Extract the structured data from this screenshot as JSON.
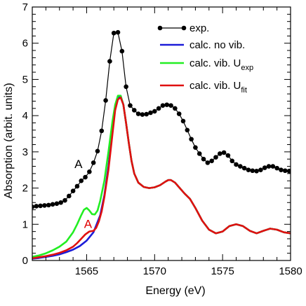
{
  "chart_data": {
    "type": "line",
    "xlabel": "Energy (eV)",
    "ylabel": "Absorption (arbit. units)",
    "xlim": [
      1561,
      1580
    ],
    "ylim": [
      0,
      7
    ],
    "x_ticks": [
      1565,
      1570,
      1575,
      1580
    ],
    "x_tick_labels": [
      "1565",
      "1570",
      "1575",
      "1580"
    ],
    "y_ticks": [
      0,
      1,
      2,
      3,
      4,
      5,
      6,
      7
    ],
    "y_tick_labels": [
      "0",
      "1",
      "2",
      "3",
      "4",
      "5",
      "6",
      "7"
    ],
    "grid": false,
    "legend_position": "top-right",
    "annotations": [
      {
        "text": "A",
        "x": 1564.4,
        "y": 2.55,
        "color": "#000000"
      },
      {
        "text": "A",
        "x": 1565.1,
        "y": 0.9,
        "color": "#e00000"
      }
    ],
    "series": [
      {
        "name": "exp.",
        "color": "#000000",
        "marker": "circle",
        "x": [
          1561.0,
          1561.3,
          1561.6,
          1561.9,
          1562.2,
          1562.5,
          1562.8,
          1563.1,
          1563.4,
          1563.7,
          1564.0,
          1564.3,
          1564.6,
          1564.9,
          1565.2,
          1565.5,
          1565.8,
          1566.1,
          1566.4,
          1566.7,
          1567.0,
          1567.3,
          1567.6,
          1567.9,
          1568.2,
          1568.5,
          1568.8,
          1569.1,
          1569.4,
          1569.7,
          1570.0,
          1570.3,
          1570.6,
          1570.9,
          1571.2,
          1571.5,
          1571.8,
          1572.1,
          1572.4,
          1572.7,
          1573.0,
          1573.3,
          1573.6,
          1573.9,
          1574.2,
          1574.5,
          1574.8,
          1575.1,
          1575.4,
          1575.7,
          1576.0,
          1576.3,
          1576.6,
          1576.9,
          1577.2,
          1577.5,
          1577.8,
          1578.1,
          1578.4,
          1578.7,
          1579.0,
          1579.3,
          1579.6,
          1579.9
        ],
        "values": [
          1.48,
          1.5,
          1.51,
          1.52,
          1.53,
          1.55,
          1.57,
          1.6,
          1.66,
          1.78,
          1.92,
          2.05,
          2.2,
          2.3,
          2.45,
          2.7,
          3.02,
          3.58,
          4.42,
          5.5,
          6.28,
          6.3,
          5.78,
          4.8,
          4.28,
          4.15,
          4.05,
          4.03,
          4.04,
          4.08,
          4.12,
          4.2,
          4.28,
          4.3,
          4.28,
          4.2,
          4.05,
          3.85,
          3.6,
          3.35,
          3.12,
          2.95,
          2.8,
          2.7,
          2.75,
          2.85,
          2.95,
          2.98,
          2.9,
          2.75,
          2.65,
          2.6,
          2.55,
          2.5,
          2.48,
          2.47,
          2.5,
          2.56,
          2.6,
          2.6,
          2.55,
          2.5,
          2.48,
          2.47
        ]
      },
      {
        "name": "calc. no vib.",
        "color": "#1c1cd8",
        "x": [
          1561.0,
          1561.5,
          1562.0,
          1562.5,
          1563.0,
          1563.5,
          1564.0,
          1564.5,
          1565.0,
          1565.5,
          1566.0,
          1566.3,
          1566.6,
          1566.9,
          1567.1,
          1567.3,
          1567.5,
          1567.7,
          1567.9,
          1568.1,
          1568.3,
          1568.5,
          1568.8,
          1569.2,
          1569.6,
          1570.0,
          1570.4,
          1570.8,
          1571.0,
          1571.2,
          1571.5,
          1571.8,
          1572.2,
          1572.6,
          1573.0,
          1573.5,
          1574.0,
          1574.5,
          1575.0,
          1575.5,
          1576.0,
          1576.5,
          1577.0,
          1577.5,
          1578.0,
          1578.5,
          1579.0,
          1579.5,
          1580.0
        ],
        "values": [
          0.05,
          0.07,
          0.1,
          0.13,
          0.17,
          0.23,
          0.3,
          0.4,
          0.55,
          0.78,
          1.25,
          1.8,
          2.6,
          3.6,
          4.2,
          4.5,
          4.55,
          4.3,
          3.8,
          3.25,
          2.75,
          2.4,
          2.15,
          2.03,
          2.0,
          2.02,
          2.08,
          2.18,
          2.22,
          2.22,
          2.15,
          2.02,
          1.85,
          1.7,
          1.45,
          1.1,
          0.85,
          0.75,
          0.8,
          0.95,
          1.0,
          0.95,
          0.82,
          0.75,
          0.82,
          0.88,
          0.85,
          0.78,
          0.75
        ]
      },
      {
        "name": "calc. vib. U_exp",
        "color": "#22ee22",
        "x": [
          1561.0,
          1561.5,
          1562.0,
          1562.5,
          1563.0,
          1563.5,
          1564.0,
          1564.3,
          1564.6,
          1564.8,
          1565.0,
          1565.2,
          1565.4,
          1565.6,
          1565.8,
          1566.0,
          1566.3,
          1566.6,
          1566.9,
          1567.1,
          1567.3,
          1567.5,
          1567.7,
          1567.9,
          1568.1,
          1568.3,
          1568.5,
          1568.8,
          1569.2,
          1569.6,
          1570.0,
          1570.4,
          1570.8,
          1571.0,
          1571.2,
          1571.5,
          1571.8,
          1572.2,
          1572.6,
          1573.0,
          1573.5,
          1574.0,
          1574.5,
          1575.0,
          1575.5,
          1576.0,
          1576.5,
          1577.0,
          1577.5,
          1578.0,
          1578.5,
          1579.0,
          1579.5,
          1580.0
        ],
        "values": [
          0.1,
          0.14,
          0.2,
          0.28,
          0.38,
          0.52,
          0.78,
          1.0,
          1.25,
          1.4,
          1.45,
          1.38,
          1.28,
          1.27,
          1.38,
          1.65,
          2.2,
          3.0,
          3.85,
          4.3,
          4.55,
          4.55,
          4.3,
          3.8,
          3.25,
          2.75,
          2.4,
          2.15,
          2.03,
          2.0,
          2.02,
          2.08,
          2.18,
          2.22,
          2.22,
          2.15,
          2.02,
          1.85,
          1.7,
          1.45,
          1.1,
          0.85,
          0.75,
          0.8,
          0.95,
          1.0,
          0.95,
          0.82,
          0.75,
          0.82,
          0.88,
          0.85,
          0.78,
          0.75
        ]
      },
      {
        "name": "calc. vib. U_fit",
        "color": "#e01010",
        "x": [
          1561.0,
          1561.5,
          1562.0,
          1562.5,
          1563.0,
          1563.5,
          1564.0,
          1564.3,
          1564.6,
          1564.9,
          1565.2,
          1565.5,
          1565.7,
          1565.9,
          1566.1,
          1566.3,
          1566.6,
          1566.9,
          1567.1,
          1567.3,
          1567.5,
          1567.7,
          1567.9,
          1568.1,
          1568.3,
          1568.5,
          1568.8,
          1569.2,
          1569.6,
          1570.0,
          1570.4,
          1570.8,
          1571.0,
          1571.2,
          1571.5,
          1571.8,
          1572.2,
          1572.6,
          1573.0,
          1573.5,
          1574.0,
          1574.5,
          1575.0,
          1575.5,
          1576.0,
          1576.5,
          1577.0,
          1577.5,
          1578.0,
          1578.5,
          1579.0,
          1579.5,
          1580.0
        ],
        "values": [
          0.06,
          0.09,
          0.12,
          0.16,
          0.21,
          0.28,
          0.38,
          0.48,
          0.6,
          0.72,
          0.8,
          0.82,
          0.9,
          1.08,
          1.35,
          1.75,
          2.5,
          3.5,
          4.15,
          4.45,
          4.5,
          4.3,
          3.8,
          3.25,
          2.75,
          2.4,
          2.15,
          2.03,
          2.0,
          2.02,
          2.08,
          2.18,
          2.22,
          2.22,
          2.15,
          2.02,
          1.85,
          1.7,
          1.45,
          1.1,
          0.85,
          0.75,
          0.8,
          0.95,
          1.0,
          0.95,
          0.82,
          0.75,
          0.82,
          0.88,
          0.85,
          0.78,
          0.75
        ]
      }
    ]
  }
}
